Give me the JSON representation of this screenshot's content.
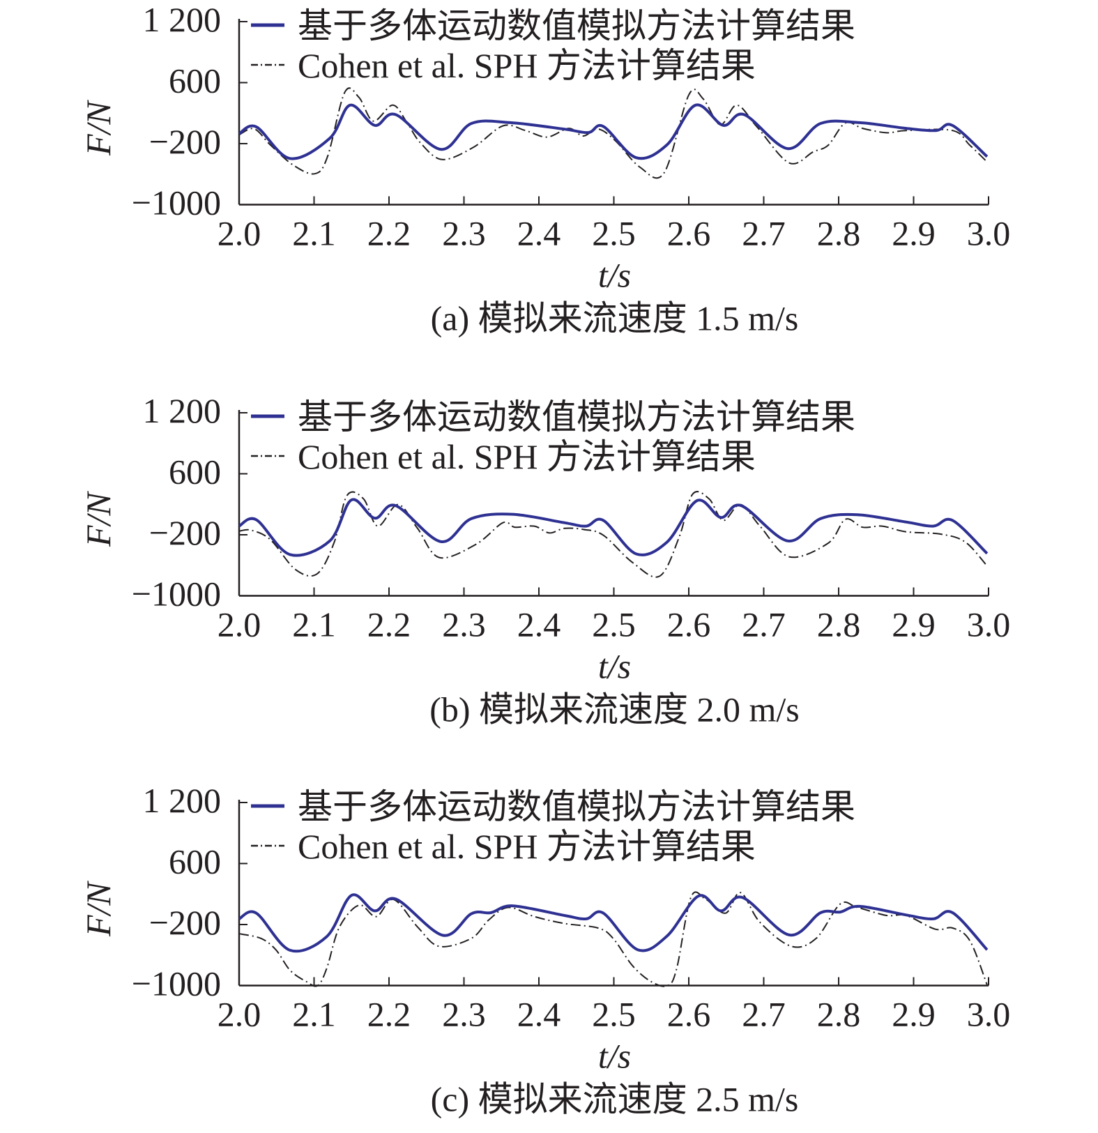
{
  "colors": {
    "series_blue": "#2e3192",
    "series_black": "#231f20",
    "axis": "#231f20"
  },
  "chart_data": [
    {
      "type": "line",
      "caption": "(a) 模拟来流速度 1.5 m/s",
      "xlabel": "t/s",
      "ylabel": "F/N",
      "xlim": [
        2.0,
        3.0
      ],
      "xticks": [
        "2.0",
        "2.1",
        "2.2",
        "2.3",
        "2.4",
        "2.5",
        "2.6",
        "2.7",
        "2.8",
        "2.9",
        "3.0"
      ],
      "yticks": [
        1200,
        600,
        -200,
        -1000
      ],
      "ytick_labels": [
        "1 200",
        "600",
        "−200",
        "−1000"
      ],
      "legend": "top-left",
      "grid": false,
      "series": [
        {
          "name": "基于多体运动数值模拟方法计算结果",
          "style": "solid",
          "x": [
            2.0,
            2.023,
            2.068,
            2.121,
            2.148,
            2.181,
            2.209,
            2.269,
            2.31,
            2.362,
            2.434,
            2.466,
            2.486,
            2.53,
            2.571,
            2.609,
            2.646,
            2.674,
            2.732,
            2.776,
            2.828,
            2.89,
            2.93,
            2.952,
            2.998
          ],
          "y": [
            -70,
            20,
            -395,
            -130,
            305,
            40,
            180,
            -275,
            65,
            75,
            -10,
            -55,
            25,
            -385,
            -215,
            305,
            40,
            180,
            -265,
            65,
            75,
            0,
            -28,
            38,
            -370
          ]
        },
        {
          "name": "Cohen et al. SPH 方法计算结果",
          "style": "dashdot",
          "x": [
            2.0,
            2.02,
            2.042,
            2.072,
            2.101,
            2.118,
            2.141,
            2.16,
            2.179,
            2.205,
            2.224,
            2.242,
            2.271,
            2.313,
            2.352,
            2.382,
            2.411,
            2.44,
            2.459,
            2.479,
            2.502,
            2.535,
            2.567,
            2.6,
            2.619,
            2.642,
            2.664,
            2.691,
            2.734,
            2.766,
            2.786,
            2.809,
            2.832,
            2.864,
            2.89,
            2.952,
            2.975,
            2.998
          ],
          "y": [
            -85,
            -5,
            -220,
            -480,
            -595,
            -370,
            475,
            405,
            95,
            305,
            75,
            -190,
            -408,
            -246,
            33,
            -28,
            -114,
            0,
            -100,
            -9,
            -161,
            -510,
            -585,
            438,
            390,
            48,
            305,
            20,
            -453,
            -308,
            -220,
            72,
            0,
            -57,
            -28,
            -28,
            -220,
            -440
          ]
        }
      ]
    },
    {
      "type": "line",
      "caption": "(b) 模拟来流速度 2.0 m/s",
      "xlabel": "t/s",
      "ylabel": "F/N",
      "xlim": [
        2.0,
        3.0
      ],
      "xticks": [
        "2.0",
        "2.1",
        "2.2",
        "2.3",
        "2.4",
        "2.5",
        "2.6",
        "2.7",
        "2.8",
        "2.9",
        "3.0"
      ],
      "yticks": [
        1200,
        600,
        -200,
        -1000
      ],
      "ytick_labels": [
        "1 200",
        "600",
        "−200",
        "−1000"
      ],
      "legend": "top-left",
      "grid": false,
      "series": [
        {
          "name": "基于多体运动数值模拟方法计算结果",
          "style": "solid",
          "x": [
            2.0,
            2.023,
            2.068,
            2.121,
            2.15,
            2.181,
            2.209,
            2.269,
            2.31,
            2.365,
            2.434,
            2.463,
            2.486,
            2.53,
            2.571,
            2.611,
            2.643,
            2.67,
            2.732,
            2.776,
            2.825,
            2.89,
            2.926,
            2.952,
            2.998
          ],
          "y": [
            -87,
            -3,
            -460,
            -280,
            257,
            18,
            182,
            -290,
            12,
            69,
            -42,
            -87,
            -12,
            -451,
            -296,
            248,
            27,
            182,
            -280,
            12,
            63,
            -33,
            -87,
            -12,
            -445
          ]
        },
        {
          "name": "Cohen et al. SPH 方法计算结果",
          "style": "dashdot",
          "x": [
            2.0,
            2.016,
            2.042,
            2.075,
            2.104,
            2.127,
            2.144,
            2.166,
            2.185,
            2.212,
            2.238,
            2.267,
            2.316,
            2.352,
            2.368,
            2.394,
            2.414,
            2.434,
            2.46,
            2.486,
            2.525,
            2.561,
            2.587,
            2.605,
            2.627,
            2.646,
            2.669,
            2.695,
            2.734,
            2.786,
            2.809,
            2.832,
            2.858,
            2.89,
            2.936,
            2.969,
            2.998
          ],
          "y": [
            -152,
            -140,
            -266,
            -654,
            -713,
            -296,
            316,
            272,
            -87,
            197,
            -116,
            -498,
            -325,
            -42,
            -101,
            -87,
            -176,
            -116,
            -131,
            -206,
            -564,
            -743,
            -236,
            331,
            272,
            -12,
            197,
            -87,
            -489,
            -310,
            3,
            -101,
            -87,
            -161,
            -191,
            -296,
            -609
          ]
        }
      ]
    },
    {
      "type": "line",
      "caption": "(c) 模拟来流速度 2.5 m/s",
      "xlabel": "t/s",
      "ylabel": "F/N",
      "xlim": [
        2.0,
        3.0
      ],
      "xticks": [
        "2.0",
        "2.1",
        "2.2",
        "2.3",
        "2.4",
        "2.5",
        "2.6",
        "2.7",
        "2.8",
        "2.9",
        "3.0"
      ],
      "yticks": [
        1200,
        600,
        -200,
        -1000
      ],
      "ytick_labels": [
        "1 200",
        "600",
        "−200",
        "−1000"
      ],
      "legend": "top-left",
      "grid": false,
      "series": [
        {
          "name": "基于多体运动数值模拟方法计算结果",
          "style": "solid",
          "x": [
            2.0,
            2.023,
            2.068,
            2.117,
            2.15,
            2.181,
            2.209,
            2.272,
            2.31,
            2.336,
            2.365,
            2.434,
            2.463,
            2.486,
            2.532,
            2.571,
            2.613,
            2.643,
            2.672,
            2.734,
            2.776,
            2.802,
            2.828,
            2.89,
            2.926,
            2.952,
            2.998
          ],
          "y": [
            -126,
            -51,
            -537,
            -357,
            183,
            -21,
            135,
            -342,
            -57,
            -45,
            45,
            -81,
            -126,
            -51,
            -531,
            -351,
            174,
            -21,
            153,
            -336,
            -45,
            -36,
            39,
            -75,
            -126,
            -45,
            -531
          ]
        },
        {
          "name": "Cohen et al. SPH 方法计算结果",
          "style": "dashdot",
          "x": [
            2.0,
            2.029,
            2.049,
            2.068,
            2.09,
            2.105,
            2.117,
            2.134,
            2.16,
            2.183,
            2.206,
            2.238,
            2.267,
            2.31,
            2.333,
            2.359,
            2.394,
            2.434,
            2.479,
            2.499,
            2.525,
            2.55,
            2.572,
            2.584,
            2.603,
            2.623,
            2.649,
            2.669,
            2.695,
            2.737,
            2.77,
            2.802,
            2.825,
            2.864,
            2.89,
            2.929,
            2.952,
            2.975,
            2.998
          ],
          "y": [
            -321,
            -381,
            -531,
            -800,
            -950,
            -1000,
            -771,
            -231,
            54,
            -96,
            129,
            -231,
            -486,
            -381,
            -141,
            24,
            -96,
            -186,
            -246,
            -381,
            -741,
            -950,
            -1000,
            -771,
            159,
            129,
            -51,
            219,
            -171,
            -486,
            -381,
            69,
            24,
            -81,
            -81,
            -261,
            -246,
            -411,
            -990
          ]
        }
      ]
    }
  ]
}
